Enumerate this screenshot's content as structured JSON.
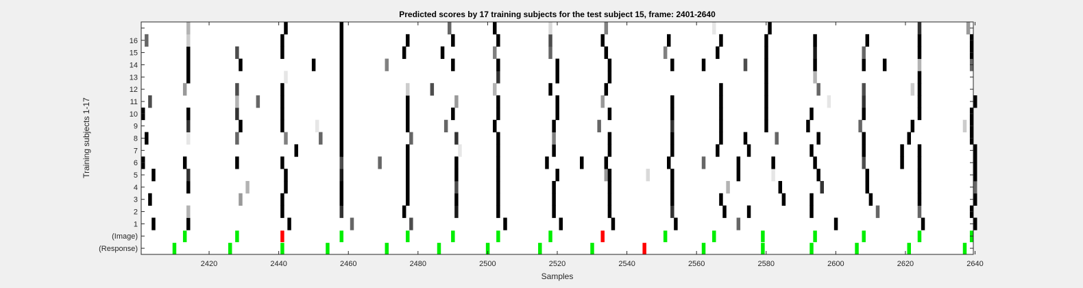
{
  "chart_data": {
    "type": "heatmap",
    "title": "Predicted scores by 17 training subjects for the test subject 15, frame: 2401-2640",
    "xlabel": "Samples",
    "ylabel": "Training subjects 1-17",
    "xlim": [
      2401,
      2640
    ],
    "xticks": [
      2420,
      2440,
      2460,
      2480,
      2500,
      2520,
      2540,
      2560,
      2580,
      2600,
      2620,
      2640
    ],
    "ytick_labels": [
      "(Response)",
      "(Image)",
      "1",
      "2",
      "3",
      "4",
      "5",
      "6",
      "7",
      "8",
      "9",
      "10",
      "11",
      "12",
      "13",
      "14",
      "15",
      "16",
      ""
    ],
    "colormap": "gray (white = 0, black = 1)",
    "subject_scores": [
      {
        "subject": 1,
        "cells": [
          [
            2404,
            1
          ],
          [
            2414,
            1
          ],
          [
            2443,
            1
          ],
          [
            2461,
            0.6
          ],
          [
            2478,
            0.7
          ],
          [
            2505,
            1
          ],
          [
            2521,
            1
          ],
          [
            2536,
            1
          ],
          [
            2554,
            1
          ],
          [
            2572,
            0.6
          ],
          [
            2600,
            1
          ],
          [
            2625,
            1
          ],
          [
            2640,
            1
          ]
        ]
      },
      {
        "subject": 2,
        "cells": [
          [
            2414,
            0.3
          ],
          [
            2441,
            1
          ],
          [
            2458,
            0.8
          ],
          [
            2476,
            1
          ],
          [
            2491,
            0.9
          ],
          [
            2503,
            1
          ],
          [
            2519,
            1
          ],
          [
            2535,
            1
          ],
          [
            2553,
            0.8
          ],
          [
            2568,
            1
          ],
          [
            2575,
            1
          ],
          [
            2593,
            1
          ],
          [
            2612,
            0.6
          ],
          [
            2624,
            0.6
          ],
          [
            2639,
            1
          ]
        ]
      },
      {
        "subject": 3,
        "cells": [
          [
            2403,
            1
          ],
          [
            2429,
            0.4
          ],
          [
            2441,
            1
          ],
          [
            2458,
            1
          ],
          [
            2477,
            1
          ],
          [
            2491,
            1
          ],
          [
            2503,
            1
          ],
          [
            2519,
            1
          ],
          [
            2535,
            1
          ],
          [
            2553,
            1
          ],
          [
            2567,
            1
          ],
          [
            2585,
            1
          ],
          [
            2593,
            1
          ],
          [
            2610,
            1
          ],
          [
            2624,
            1
          ],
          [
            2640,
            1
          ]
        ]
      },
      {
        "subject": 4,
        "cells": [
          [
            2414,
            1
          ],
          [
            2431,
            0.3
          ],
          [
            2442,
            1
          ],
          [
            2458,
            1
          ],
          [
            2477,
            1
          ],
          [
            2491,
            0.7
          ],
          [
            2503,
            1
          ],
          [
            2519,
            1
          ],
          [
            2535,
            1
          ],
          [
            2553,
            1
          ],
          [
            2569,
            0.3
          ],
          [
            2584,
            1
          ],
          [
            2596,
            0.8
          ],
          [
            2609,
            1
          ],
          [
            2624,
            1
          ],
          [
            2640,
            0.6
          ]
        ]
      },
      {
        "subject": 5,
        "cells": [
          [
            2404,
            1
          ],
          [
            2414,
            0.8
          ],
          [
            2442,
            1
          ],
          [
            2458,
            0.9
          ],
          [
            2477,
            1
          ],
          [
            2491,
            1
          ],
          [
            2503,
            1
          ],
          [
            2520,
            1
          ],
          [
            2534,
            0.4
          ],
          [
            2535,
            1
          ],
          [
            2546,
            0.15
          ],
          [
            2553,
            1
          ],
          [
            2572,
            1
          ],
          [
            2582,
            0.1
          ],
          [
            2595,
            1
          ],
          [
            2609,
            1
          ],
          [
            2624,
            1
          ],
          [
            2640,
            1
          ]
        ]
      },
      {
        "subject": 6,
        "cells": [
          [
            2401,
            1
          ],
          [
            2413,
            1
          ],
          [
            2428,
            1
          ],
          [
            2441,
            1
          ],
          [
            2458,
            0.7
          ],
          [
            2469,
            0.6
          ],
          [
            2477,
            1
          ],
          [
            2491,
            1
          ],
          [
            2503,
            1
          ],
          [
            2517,
            1
          ],
          [
            2527,
            1
          ],
          [
            2534,
            1
          ],
          [
            2552,
            1
          ],
          [
            2562,
            0.6
          ],
          [
            2572,
            1
          ],
          [
            2582,
            1
          ],
          [
            2594,
            1
          ],
          [
            2608,
            0.7
          ],
          [
            2619,
            1
          ],
          [
            2624,
            1
          ],
          [
            2640,
            1
          ]
        ]
      },
      {
        "subject": 7,
        "cells": [
          [
            2445,
            1
          ],
          [
            2458,
            1
          ],
          [
            2477,
            1
          ],
          [
            2492,
            0.1
          ],
          [
            2503,
            1
          ],
          [
            2519,
            1
          ],
          [
            2535,
            1
          ],
          [
            2553,
            1
          ],
          [
            2566,
            1
          ],
          [
            2575,
            1
          ],
          [
            2593,
            1
          ],
          [
            2608,
            1
          ],
          [
            2619,
            1
          ],
          [
            2624,
            1
          ],
          [
            2640,
            1
          ]
        ]
      },
      {
        "subject": 8,
        "cells": [
          [
            2402,
            1
          ],
          [
            2414,
            0.1
          ],
          [
            2428,
            0.6
          ],
          [
            2442,
            0.5
          ],
          [
            2452,
            0.6
          ],
          [
            2458,
            1
          ],
          [
            2478,
            0.6
          ],
          [
            2491,
            0.8
          ],
          [
            2503,
            1
          ],
          [
            2519,
            0.5
          ],
          [
            2535,
            1
          ],
          [
            2553,
            1
          ],
          [
            2567,
            1
          ],
          [
            2574,
            1
          ],
          [
            2583,
            0.6
          ],
          [
            2595,
            1
          ],
          [
            2608,
            1
          ],
          [
            2621,
            1
          ],
          [
            2639,
            1
          ]
        ]
      },
      {
        "subject": 9,
        "cells": [
          [
            2414,
            0.8
          ],
          [
            2429,
            1
          ],
          [
            2441,
            1
          ],
          [
            2451,
            0.1
          ],
          [
            2458,
            1
          ],
          [
            2477,
            1
          ],
          [
            2488,
            0.6
          ],
          [
            2502,
            1
          ],
          [
            2519,
            1
          ],
          [
            2532,
            0.6
          ],
          [
            2553,
            0.8
          ],
          [
            2567,
            1
          ],
          [
            2580,
            1
          ],
          [
            2592,
            1
          ],
          [
            2607,
            0.6
          ],
          [
            2622,
            1
          ],
          [
            2637,
            0.2
          ],
          [
            2639,
            1
          ]
        ]
      },
      {
        "subject": 10,
        "cells": [
          [
            2401,
            1
          ],
          [
            2414,
            1
          ],
          [
            2428,
            0.8
          ],
          [
            2441,
            1
          ],
          [
            2458,
            1
          ],
          [
            2477,
            1
          ],
          [
            2490,
            1
          ],
          [
            2503,
            1
          ],
          [
            2520,
            1
          ],
          [
            2535,
            1
          ],
          [
            2553,
            1
          ],
          [
            2567,
            1
          ],
          [
            2580,
            1
          ],
          [
            2593,
            1
          ],
          [
            2608,
            1
          ],
          [
            2624,
            1
          ],
          [
            2639,
            1
          ]
        ]
      },
      {
        "subject": 11,
        "cells": [
          [
            2403,
            0.7
          ],
          [
            2428,
            0.3
          ],
          [
            2434,
            0.6
          ],
          [
            2441,
            1
          ],
          [
            2458,
            1
          ],
          [
            2477,
            1
          ],
          [
            2491,
            0.4
          ],
          [
            2503,
            1
          ],
          [
            2520,
            1
          ],
          [
            2533,
            0.4
          ],
          [
            2553,
            1
          ],
          [
            2567,
            1
          ],
          [
            2580,
            1
          ],
          [
            2598,
            0.1
          ],
          [
            2608,
            0.8
          ],
          [
            2624,
            1
          ],
          [
            2640,
            1
          ]
        ]
      },
      {
        "subject": 12,
        "cells": [
          [
            2413,
            0.4
          ],
          [
            2428,
            0.7
          ],
          [
            2441,
            1
          ],
          [
            2458,
            1
          ],
          [
            2477,
            0.2
          ],
          [
            2484,
            0.7
          ],
          [
            2502,
            0.3
          ],
          [
            2518,
            1
          ],
          [
            2534,
            1
          ],
          [
            2567,
            1
          ],
          [
            2580,
            1
          ],
          [
            2595,
            0.6
          ],
          [
            2608,
            0.7
          ],
          [
            2622,
            0.2
          ],
          [
            2624,
            1
          ]
        ]
      },
      {
        "subject": 13,
        "cells": [
          [
            2414,
            1
          ],
          [
            2442,
            0.1
          ],
          [
            2458,
            1
          ],
          [
            2503,
            0.8
          ],
          [
            2520,
            1
          ],
          [
            2535,
            1
          ],
          [
            2580,
            1
          ],
          [
            2594,
            0.3
          ],
          [
            2624,
            1
          ]
        ]
      },
      {
        "subject": 14,
        "cells": [
          [
            2414,
            1
          ],
          [
            2429,
            1
          ],
          [
            2450,
            1
          ],
          [
            2458,
            1
          ],
          [
            2471,
            0.5
          ],
          [
            2490,
            1
          ],
          [
            2503,
            1
          ],
          [
            2520,
            1
          ],
          [
            2535,
            1
          ],
          [
            2553,
            1
          ],
          [
            2562,
            1
          ],
          [
            2574,
            0.7
          ],
          [
            2580,
            1
          ],
          [
            2594,
            1
          ],
          [
            2608,
            1
          ],
          [
            2614,
            1
          ],
          [
            2624,
            0.3
          ],
          [
            2639,
            0.6
          ]
        ]
      },
      {
        "subject": 15,
        "cells": [
          [
            2414,
            1
          ],
          [
            2428,
            0.7
          ],
          [
            2441,
            1
          ],
          [
            2458,
            1
          ],
          [
            2476,
            1
          ],
          [
            2487,
            1
          ],
          [
            2502,
            0.5
          ],
          [
            2518,
            0.6
          ],
          [
            2534,
            1
          ],
          [
            2551,
            0.5
          ],
          [
            2566,
            1
          ],
          [
            2580,
            1
          ],
          [
            2594,
            0.9
          ],
          [
            2608,
            0.6
          ],
          [
            2624,
            1
          ],
          [
            2639,
            1
          ]
        ]
      },
      {
        "subject": 16,
        "cells": [
          [
            2402,
            0.6
          ],
          [
            2414,
            0.2
          ],
          [
            2441,
            1
          ],
          [
            2458,
            1
          ],
          [
            2477,
            1
          ],
          [
            2490,
            1
          ],
          [
            2503,
            1
          ],
          [
            2518,
            0.7
          ],
          [
            2533,
            1
          ],
          [
            2552,
            1
          ],
          [
            2567,
            1
          ],
          [
            2580,
            1
          ],
          [
            2594,
            1
          ],
          [
            2609,
            1
          ],
          [
            2624,
            1
          ],
          [
            2639,
            1
          ]
        ]
      },
      {
        "subject": 17,
        "cells": [
          [
            2414,
            0.3
          ],
          [
            2442,
            1
          ],
          [
            2458,
            1
          ],
          [
            2489,
            0.6
          ],
          [
            2502,
            1
          ],
          [
            2518,
            0.15
          ],
          [
            2534,
            0.5
          ],
          [
            2565,
            0.1
          ],
          [
            2581,
            1
          ],
          [
            2624,
            0.8
          ],
          [
            2638,
            0.4
          ]
        ]
      }
    ],
    "image_markers": {
      "label": "(Image)",
      "samples": [
        2413,
        2428,
        2441,
        2458,
        2477,
        2490,
        2503,
        2518,
        2533,
        2551,
        2565,
        2579,
        2594,
        2608,
        2624,
        2639
      ],
      "colors": [
        "#00ee00",
        "#00ee00",
        "#ff0000",
        "#00ee00",
        "#00ee00",
        "#00ee00",
        "#00ee00",
        "#00ee00",
        "#ff0000",
        "#00ee00",
        "#00ee00",
        "#00ee00",
        "#00ee00",
        "#00ee00",
        "#00ee00",
        "#00ee00"
      ]
    },
    "response_markers": {
      "label": "(Response)",
      "samples": [
        2410,
        2426,
        2441,
        2454,
        2471,
        2486,
        2500,
        2515,
        2530,
        2545,
        2562,
        2579,
        2593,
        2606,
        2621,
        2637
      ],
      "colors": [
        "#00ee00",
        "#00ee00",
        "#00ee00",
        "#00ee00",
        "#00ee00",
        "#00ee00",
        "#00ee00",
        "#00ee00",
        "#00ee00",
        "#ff0000",
        "#00ee00",
        "#00ee00",
        "#00ee00",
        "#00ee00",
        "#00ee00",
        "#00ee00"
      ]
    }
  }
}
